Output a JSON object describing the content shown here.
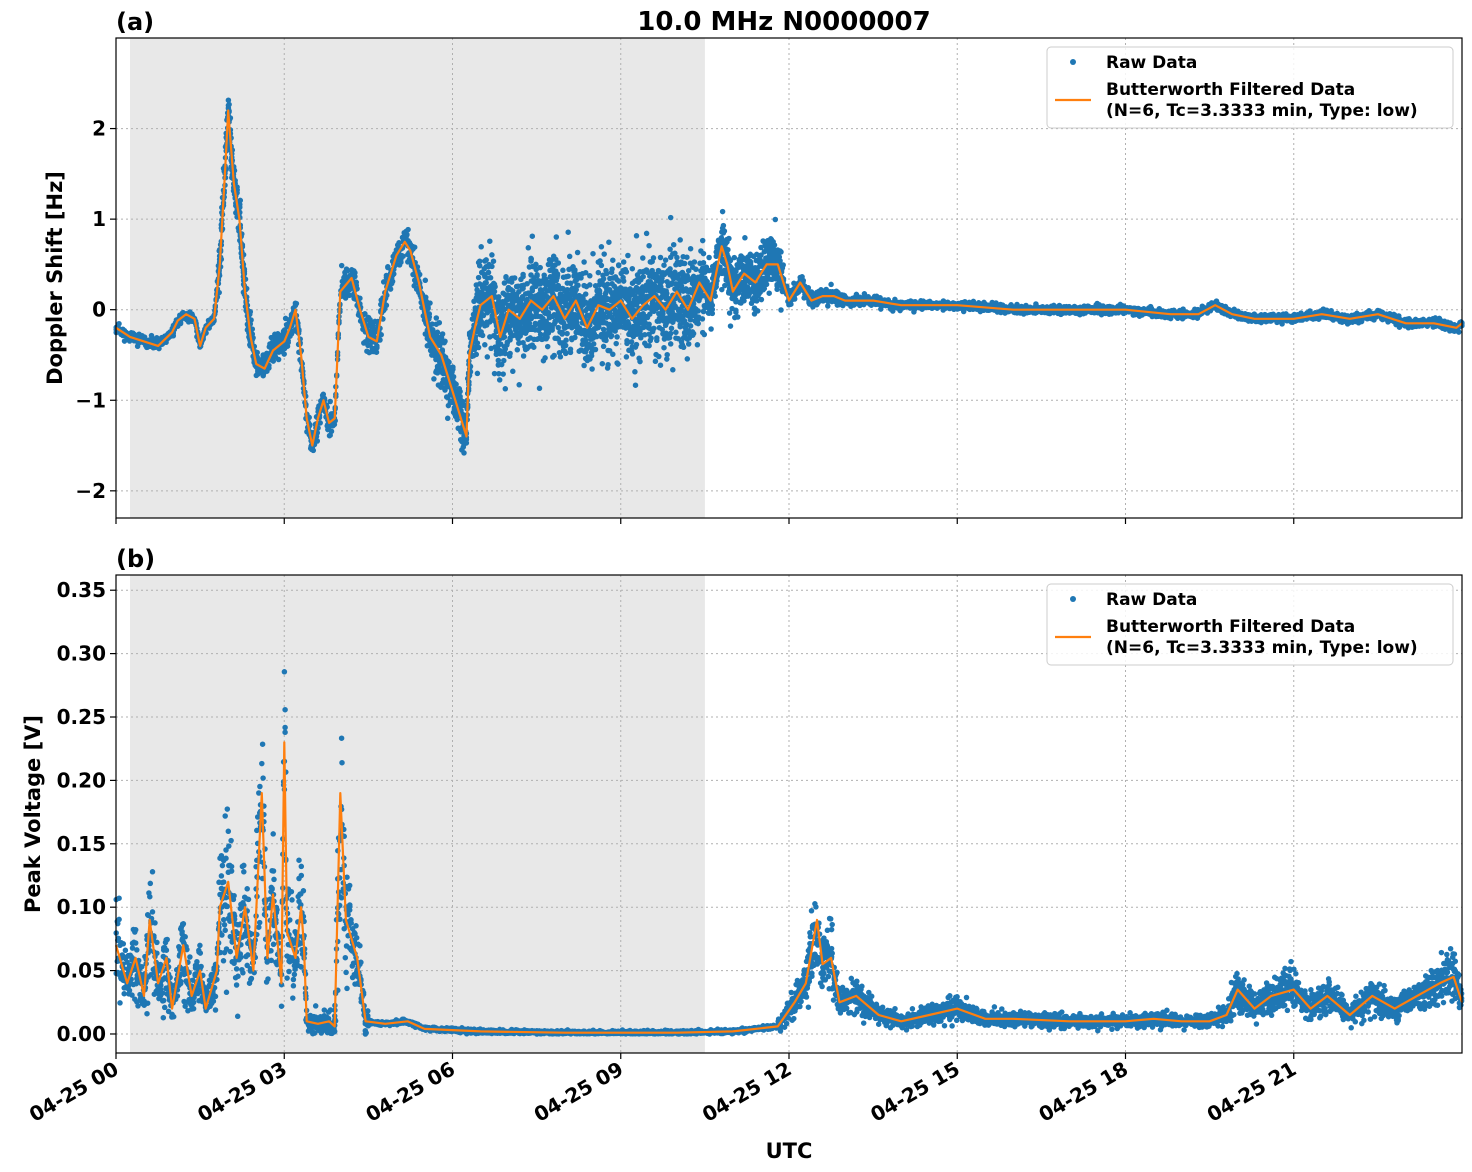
{
  "figure": {
    "title": "10.0 MHz N0000007",
    "xlabel": "UTC",
    "xticks": [
      "04-25 00",
      "04-25 03",
      "04-25 06",
      "04-25 09",
      "04-25 12",
      "04-25 15",
      "04-25 18",
      "04-25 21"
    ]
  },
  "colors": {
    "raw": "#1f77b4",
    "filtered": "#ff7f0e",
    "shade": "#e8e8e8"
  },
  "chart_data": [
    {
      "type": "scatter",
      "panel_label": "(a)",
      "ylabel": "Doppler Shift [Hz]",
      "x_unit": "UTC hours",
      "xlim": [
        0,
        24
      ],
      "ylim": [
        -2.3,
        3.0
      ],
      "yticks": [
        {
          "value": -2,
          "label": "−2"
        },
        {
          "value": -1,
          "label": "−1"
        },
        {
          "value": 0,
          "label": "0"
        },
        {
          "value": 1,
          "label": "1"
        },
        {
          "value": 2,
          "label": "2"
        }
      ],
      "grid": true,
      "legend_position": "top-right",
      "shaded_interval": [
        0.25,
        10.5
      ],
      "legend": {
        "raw": "Raw Data",
        "filtered_line1": "Butterworth Filtered Data",
        "filtered_line2": "(N=6, Tc=3.3333 min, Type: low)"
      },
      "series": [
        {
          "name": "Butterworth Filtered Data",
          "kind": "line",
          "points": [
            [
              0,
              -0.2
            ],
            [
              0.25,
              -0.3
            ],
            [
              0.5,
              -0.35
            ],
            [
              0.75,
              -0.4
            ],
            [
              1.0,
              -0.25
            ],
            [
              1.1,
              -0.12
            ],
            [
              1.25,
              -0.05
            ],
            [
              1.4,
              -0.1
            ],
            [
              1.5,
              -0.4
            ],
            [
              1.6,
              -0.2
            ],
            [
              1.75,
              -0.1
            ],
            [
              1.85,
              0.5
            ],
            [
              1.95,
              1.6
            ],
            [
              2.0,
              2.2
            ],
            [
              2.1,
              1.4
            ],
            [
              2.2,
              1.0
            ],
            [
              2.3,
              0.2
            ],
            [
              2.4,
              -0.3
            ],
            [
              2.5,
              -0.6
            ],
            [
              2.65,
              -0.65
            ],
            [
              2.8,
              -0.45
            ],
            [
              3.0,
              -0.35
            ],
            [
              3.1,
              -0.2
            ],
            [
              3.2,
              0.0
            ],
            [
              3.3,
              -0.5
            ],
            [
              3.4,
              -1.2
            ],
            [
              3.5,
              -1.5
            ],
            [
              3.6,
              -1.2
            ],
            [
              3.7,
              -1.0
            ],
            [
              3.8,
              -1.25
            ],
            [
              3.9,
              -1.2
            ],
            [
              4.0,
              0.2
            ],
            [
              4.2,
              0.35
            ],
            [
              4.35,
              0.0
            ],
            [
              4.5,
              -0.3
            ],
            [
              4.65,
              -0.35
            ],
            [
              4.8,
              0.2
            ],
            [
              5.0,
              0.6
            ],
            [
              5.15,
              0.75
            ],
            [
              5.25,
              0.65
            ],
            [
              5.4,
              0.3
            ],
            [
              5.6,
              -0.3
            ],
            [
              5.8,
              -0.5
            ],
            [
              6.0,
              -0.9
            ],
            [
              6.1,
              -1.1
            ],
            [
              6.25,
              -1.4
            ],
            [
              6.3,
              -0.5
            ],
            [
              6.4,
              -0.2
            ],
            [
              6.5,
              0.05
            ],
            [
              6.7,
              0.15
            ],
            [
              6.85,
              -0.3
            ],
            [
              7.0,
              0.0
            ],
            [
              7.2,
              -0.1
            ],
            [
              7.4,
              0.1
            ],
            [
              7.6,
              0.0
            ],
            [
              7.8,
              0.15
            ],
            [
              8.0,
              -0.1
            ],
            [
              8.2,
              0.1
            ],
            [
              8.4,
              -0.2
            ],
            [
              8.6,
              0.05
            ],
            [
              8.8,
              0.0
            ],
            [
              9.0,
              0.1
            ],
            [
              9.2,
              -0.1
            ],
            [
              9.4,
              0.05
            ],
            [
              9.6,
              0.15
            ],
            [
              9.8,
              0.0
            ],
            [
              10.0,
              0.2
            ],
            [
              10.2,
              0.0
            ],
            [
              10.4,
              0.3
            ],
            [
              10.6,
              0.1
            ],
            [
              10.8,
              0.7
            ],
            [
              10.9,
              0.5
            ],
            [
              11.0,
              0.2
            ],
            [
              11.2,
              0.4
            ],
            [
              11.4,
              0.3
            ],
            [
              11.6,
              0.5
            ],
            [
              11.8,
              0.5
            ],
            [
              12.0,
              0.1
            ],
            [
              12.2,
              0.3
            ],
            [
              12.4,
              0.1
            ],
            [
              12.6,
              0.15
            ],
            [
              12.8,
              0.15
            ],
            [
              13.0,
              0.1
            ],
            [
              13.5,
              0.1
            ],
            [
              14.0,
              0.05
            ],
            [
              14.5,
              0.05
            ],
            [
              15.0,
              0.05
            ],
            [
              16.0,
              0.0
            ],
            [
              17.0,
              0.0
            ],
            [
              18.0,
              0.0
            ],
            [
              18.8,
              -0.05
            ],
            [
              19.3,
              -0.05
            ],
            [
              19.6,
              0.05
            ],
            [
              19.9,
              -0.05
            ],
            [
              20.3,
              -0.1
            ],
            [
              21.0,
              -0.1
            ],
            [
              21.5,
              -0.05
            ],
            [
              22.0,
              -0.1
            ],
            [
              22.5,
              -0.05
            ],
            [
              23.0,
              -0.15
            ],
            [
              23.5,
              -0.15
            ],
            [
              23.9,
              -0.2
            ],
            [
              24.0,
              -0.15
            ]
          ]
        }
      ]
    },
    {
      "type": "scatter",
      "panel_label": "(b)",
      "ylabel": "Peak Voltage [V]",
      "x_unit": "UTC hours",
      "xlim": [
        0,
        24
      ],
      "ylim": [
        -0.015,
        0.362
      ],
      "yticks": [
        {
          "value": 0.0,
          "label": "0.00"
        },
        {
          "value": 0.05,
          "label": "0.05"
        },
        {
          "value": 0.1,
          "label": "0.10"
        },
        {
          "value": 0.15,
          "label": "0.15"
        },
        {
          "value": 0.2,
          "label": "0.20"
        },
        {
          "value": 0.25,
          "label": "0.25"
        },
        {
          "value": 0.3,
          "label": "0.30"
        },
        {
          "value": 0.35,
          "label": "0.35"
        }
      ],
      "grid": true,
      "legend_position": "top-right",
      "shaded_interval": [
        0.25,
        10.5
      ],
      "legend": {
        "raw": "Raw Data",
        "filtered_line1": "Butterworth Filtered Data",
        "filtered_line2": "(N=6, Tc=3.3333 min, Type: low)"
      },
      "series": [
        {
          "name": "Butterworth Filtered Data",
          "kind": "line",
          "points": [
            [
              0,
              0.07
            ],
            [
              0.2,
              0.04
            ],
            [
              0.35,
              0.06
            ],
            [
              0.5,
              0.03
            ],
            [
              0.6,
              0.09
            ],
            [
              0.75,
              0.04
            ],
            [
              0.9,
              0.06
            ],
            [
              1.0,
              0.02
            ],
            [
              1.2,
              0.07
            ],
            [
              1.35,
              0.03
            ],
            [
              1.5,
              0.05
            ],
            [
              1.6,
              0.02
            ],
            [
              1.8,
              0.05
            ],
            [
              1.85,
              0.1
            ],
            [
              2.0,
              0.12
            ],
            [
              2.15,
              0.06
            ],
            [
              2.3,
              0.1
            ],
            [
              2.45,
              0.05
            ],
            [
              2.6,
              0.19
            ],
            [
              2.7,
              0.06
            ],
            [
              2.8,
              0.11
            ],
            [
              2.95,
              0.04
            ],
            [
              3.0,
              0.23
            ],
            [
              3.05,
              0.08
            ],
            [
              3.2,
              0.06
            ],
            [
              3.3,
              0.1
            ],
            [
              3.35,
              0.07
            ],
            [
              3.4,
              0.01
            ],
            [
              3.6,
              0.008
            ],
            [
              3.8,
              0.01
            ],
            [
              3.9,
              0.006
            ],
            [
              4.0,
              0.19
            ],
            [
              4.1,
              0.09
            ],
            [
              4.3,
              0.06
            ],
            [
              4.45,
              0.01
            ],
            [
              4.8,
              0.008
            ],
            [
              5.2,
              0.01
            ],
            [
              5.5,
              0.004
            ],
            [
              6.5,
              0.002
            ],
            [
              8.0,
              0.001
            ],
            [
              10.0,
              0.001
            ],
            [
              11.0,
              0.002
            ],
            [
              11.8,
              0.006
            ],
            [
              12.1,
              0.025
            ],
            [
              12.3,
              0.04
            ],
            [
              12.5,
              0.09
            ],
            [
              12.6,
              0.055
            ],
            [
              12.75,
              0.06
            ],
            [
              12.9,
              0.025
            ],
            [
              13.2,
              0.03
            ],
            [
              13.6,
              0.015
            ],
            [
              14.0,
              0.01
            ],
            [
              14.5,
              0.015
            ],
            [
              15.0,
              0.02
            ],
            [
              15.5,
              0.012
            ],
            [
              16.0,
              0.012
            ],
            [
              17.0,
              0.01
            ],
            [
              18.0,
              0.01
            ],
            [
              18.5,
              0.012
            ],
            [
              19.0,
              0.01
            ],
            [
              19.5,
              0.01
            ],
            [
              19.8,
              0.015
            ],
            [
              20.0,
              0.035
            ],
            [
              20.3,
              0.02
            ],
            [
              20.6,
              0.03
            ],
            [
              21.0,
              0.035
            ],
            [
              21.3,
              0.02
            ],
            [
              21.6,
              0.03
            ],
            [
              22.0,
              0.015
            ],
            [
              22.4,
              0.03
            ],
            [
              22.8,
              0.02
            ],
            [
              23.2,
              0.03
            ],
            [
              23.6,
              0.04
            ],
            [
              23.85,
              0.045
            ],
            [
              24.0,
              0.025
            ]
          ]
        }
      ]
    }
  ]
}
